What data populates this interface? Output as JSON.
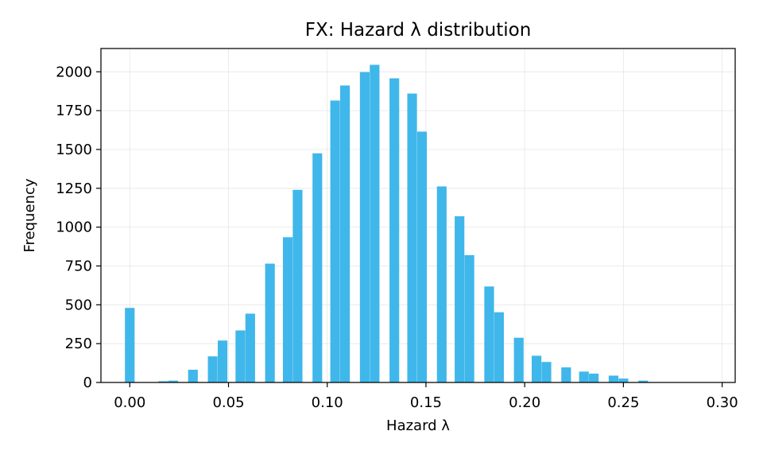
{
  "chart_data": {
    "type": "bar",
    "title": "FX: Hazard λ distribution",
    "xlabel": "Hazard λ",
    "ylabel": "Frequency",
    "xlim": [
      -0.0146,
      0.3066
    ],
    "ylim": [
      0,
      2150
    ],
    "xticks": [
      "0.00",
      "0.05",
      "0.10",
      "0.15",
      "0.20",
      "0.25",
      "0.30"
    ],
    "xtick_values": [
      0.0,
      0.05,
      0.1,
      0.15,
      0.2,
      0.25,
      0.3
    ],
    "yticks": [
      "0",
      "250",
      "500",
      "750",
      "1000",
      "1250",
      "1500",
      "1750",
      "2000"
    ],
    "ytick_values": [
      0,
      250,
      500,
      750,
      1000,
      1250,
      1500,
      1750,
      2000
    ],
    "grid": true,
    "bar_color": "#3fb7ea",
    "bin_width": 0.0049,
    "bins": [
      {
        "x": 0.0,
        "count": 480
      },
      {
        "x": 0.017,
        "count": 8
      },
      {
        "x": 0.022,
        "count": 12
      },
      {
        "x": 0.032,
        "count": 82
      },
      {
        "x": 0.042,
        "count": 168
      },
      {
        "x": 0.047,
        "count": 270
      },
      {
        "x": 0.056,
        "count": 335
      },
      {
        "x": 0.061,
        "count": 443
      },
      {
        "x": 0.071,
        "count": 765
      },
      {
        "x": 0.08,
        "count": 935
      },
      {
        "x": 0.085,
        "count": 1240
      },
      {
        "x": 0.095,
        "count": 1475
      },
      {
        "x": 0.104,
        "count": 1815
      },
      {
        "x": 0.109,
        "count": 1912
      },
      {
        "x": 0.119,
        "count": 1998
      },
      {
        "x": 0.124,
        "count": 2045
      },
      {
        "x": 0.134,
        "count": 1958
      },
      {
        "x": 0.143,
        "count": 1860
      },
      {
        "x": 0.148,
        "count": 1615
      },
      {
        "x": 0.158,
        "count": 1262
      },
      {
        "x": 0.167,
        "count": 1070
      },
      {
        "x": 0.172,
        "count": 820
      },
      {
        "x": 0.182,
        "count": 618
      },
      {
        "x": 0.187,
        "count": 452
      },
      {
        "x": 0.197,
        "count": 288
      },
      {
        "x": 0.206,
        "count": 172
      },
      {
        "x": 0.211,
        "count": 132
      },
      {
        "x": 0.221,
        "count": 97
      },
      {
        "x": 0.23,
        "count": 70
      },
      {
        "x": 0.235,
        "count": 57
      },
      {
        "x": 0.245,
        "count": 44
      },
      {
        "x": 0.25,
        "count": 25
      },
      {
        "x": 0.26,
        "count": 12
      }
    ]
  }
}
